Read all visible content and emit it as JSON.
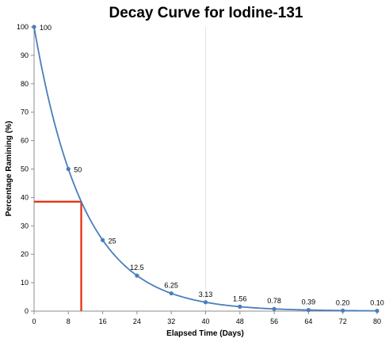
{
  "chart_data": {
    "type": "line",
    "title": "Decay Curve for Iodine-131",
    "xlabel": "Elapsed Time (Days)",
    "ylabel": "Percentage Ramining (%)",
    "x": [
      0,
      8,
      16,
      24,
      32,
      40,
      48,
      56,
      64,
      72,
      80
    ],
    "series": [
      {
        "values": [
          100,
          50,
          25,
          12.5,
          6.25,
          3.13,
          1.56,
          0.78,
          0.39,
          0.2,
          0.1
        ],
        "labels": [
          "100",
          "50",
          "25",
          "12.5",
          "6.25",
          "3.13",
          "1.56",
          "0.78",
          "0.39",
          "0.20",
          "0.10"
        ],
        "color": "#4a7ebb"
      }
    ],
    "xticks": [
      "0",
      "8",
      "16",
      "24",
      "32",
      "40",
      "48",
      "56",
      "64",
      "72",
      "80"
    ],
    "yticks": [
      "0",
      "10",
      "20",
      "30",
      "40",
      "50",
      "60",
      "70",
      "80",
      "90",
      "100"
    ],
    "xlim": [
      0,
      80
    ],
    "ylim": [
      0,
      100
    ],
    "grid": "vertical-at-40",
    "legend": "none",
    "annotation": {
      "type": "reference-lines",
      "x": 11,
      "y": 38.5,
      "color": "#e8280a"
    }
  }
}
